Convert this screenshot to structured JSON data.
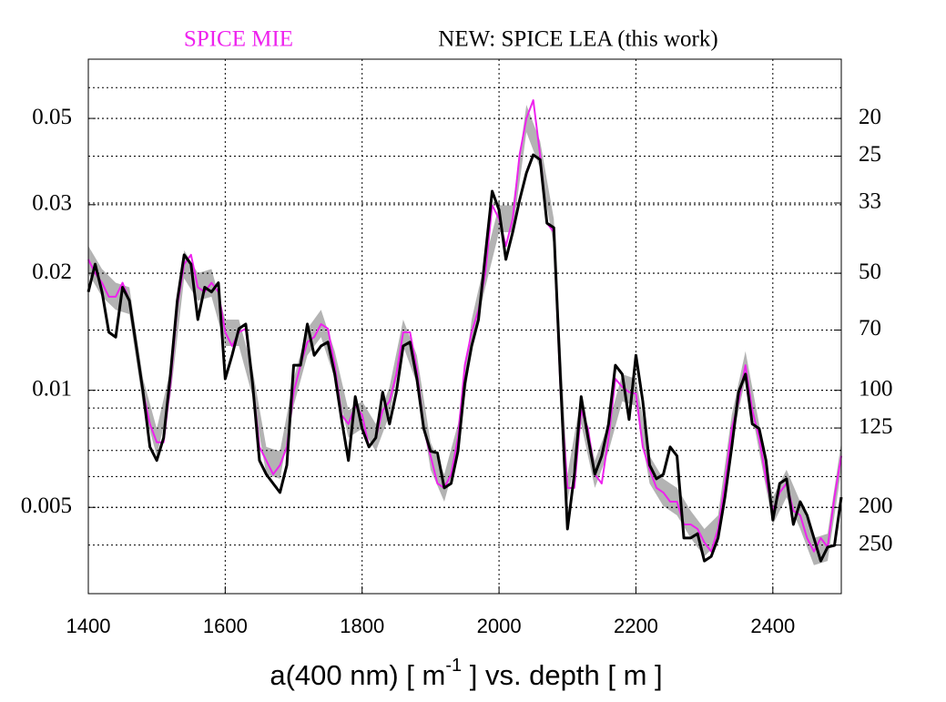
{
  "chart_data": {
    "type": "line",
    "xlabel": {
      "pre": "a(400 nm) [ m",
      "sup": "-1",
      "post": " ] vs. depth [ m ]"
    },
    "xlim": [
      1400,
      2500
    ],
    "xticks": [
      1400,
      1600,
      1800,
      2000,
      2200,
      2400
    ],
    "ylim": [
      0.003,
      0.071
    ],
    "yticks": [
      0.005,
      0.01,
      0.02,
      0.03,
      0.05
    ],
    "ylog": true,
    "y_minor_grid": [
      0.06,
      0.009,
      0.007,
      0.006
    ],
    "y2lim": [
      14.08,
      333.3
    ],
    "y2ticks": [
      20,
      25,
      33,
      50,
      70,
      100,
      125,
      200,
      250
    ],
    "y2log": true,
    "y2reversed": true,
    "grid": true,
    "x": [
      1400,
      1410,
      1420,
      1430,
      1440,
      1450,
      1460,
      1470,
      1480,
      1490,
      1500,
      1510,
      1520,
      1530,
      1540,
      1550,
      1560,
      1570,
      1580,
      1590,
      1600,
      1610,
      1620,
      1630,
      1640,
      1650,
      1660,
      1670,
      1680,
      1690,
      1700,
      1710,
      1720,
      1730,
      1740,
      1750,
      1760,
      1770,
      1780,
      1790,
      1800,
      1810,
      1820,
      1830,
      1840,
      1850,
      1860,
      1870,
      1880,
      1890,
      1900,
      1910,
      1920,
      1930,
      1940,
      1950,
      1960,
      1970,
      1980,
      1990,
      2000,
      2010,
      2020,
      2030,
      2040,
      2050,
      2060,
      2070,
      2080,
      2090,
      2100,
      2110,
      2120,
      2130,
      2140,
      2150,
      2160,
      2170,
      2180,
      2190,
      2200,
      2210,
      2220,
      2230,
      2240,
      2250,
      2260,
      2270,
      2280,
      2290,
      2300,
      2310,
      2320,
      2330,
      2340,
      2350,
      2360,
      2370,
      2380,
      2390,
      2400,
      2410,
      2420,
      2430,
      2440,
      2450,
      2460,
      2470,
      2480,
      2490,
      2500
    ],
    "band": {
      "color": "#b3b3b3",
      "x": [
        1400,
        1420,
        1440,
        1460,
        1480,
        1500,
        1520,
        1540,
        1560,
        1580,
        1600,
        1620,
        1640,
        1660,
        1680,
        1700,
        1720,
        1740,
        1760,
        1780,
        1800,
        1820,
        1840,
        1860,
        1880,
        1900,
        1920,
        1940,
        1960,
        1980,
        2000,
        2020,
        2040,
        2060,
        2080,
        2100,
        2120,
        2140,
        2160,
        2180,
        2200,
        2220,
        2240,
        2260,
        2280,
        2300,
        2320,
        2340,
        2360,
        2380,
        2400,
        2420,
        2440,
        2460,
        2480,
        2500
      ],
      "upper": [
        0.0235,
        0.0205,
        0.0189,
        0.0184,
        0.0107,
        0.00797,
        0.0113,
        0.0229,
        0.02,
        0.0205,
        0.0152,
        0.0152,
        0.0113,
        0.00715,
        0.00697,
        0.0107,
        0.0144,
        0.0161,
        0.0126,
        0.00888,
        0.00937,
        0.00819,
        0.0102,
        0.0152,
        0.0123,
        0.00735,
        0.00608,
        0.00819,
        0.0152,
        0.0217,
        0.0299,
        0.0299,
        0.0542,
        0.0437,
        0.0276,
        0.00608,
        0.00963,
        0.0066,
        0.00819,
        0.011,
        0.0107,
        0.00678,
        0.00592,
        0.00561,
        0.0049,
        0.0044,
        0.00477,
        0.00864,
        0.0126,
        0.00819,
        0.00531,
        0.00625,
        0.00517,
        0.00417,
        0.00428,
        0.00735
      ],
      "lower": [
        0.02,
        0.0174,
        0.0161,
        0.0157,
        0.00912,
        0.00678,
        0.00963,
        0.0194,
        0.017,
        0.0174,
        0.013,
        0.013,
        0.00963,
        0.00608,
        0.00592,
        0.00912,
        0.0123,
        0.0137,
        0.0107,
        0.00755,
        0.00797,
        0.00697,
        0.00864,
        0.013,
        0.0104,
        0.00625,
        0.00517,
        0.00697,
        0.013,
        0.0184,
        0.0255,
        0.0255,
        0.0461,
        0.0372,
        0.0235,
        0.00517,
        0.00819,
        0.00561,
        0.00697,
        0.00937,
        0.00912,
        0.00576,
        0.00504,
        0.00477,
        0.00417,
        0.00374,
        0.00406,
        0.00735,
        0.0107,
        0.00697,
        0.00452,
        0.00531,
        0.0044,
        0.00355,
        0.00364,
        0.00625
      ]
    },
    "series": [
      {
        "name": "SPICE MIE",
        "color": "#ee22ee",
        "values": [
          0.0217,
          0.02,
          0.0189,
          0.0174,
          0.0174,
          0.0189,
          0.017,
          0.013,
          0.00989,
          0.00819,
          0.00735,
          0.00735,
          0.0104,
          0.0165,
          0.0211,
          0.0223,
          0.0184,
          0.0179,
          0.0189,
          0.0179,
          0.0141,
          0.013,
          0.0141,
          0.0144,
          0.0104,
          0.00715,
          0.0066,
          0.00608,
          0.00642,
          0.00715,
          0.00989,
          0.0116,
          0.0133,
          0.0137,
          0.0148,
          0.0144,
          0.0116,
          0.00864,
          0.00819,
          0.00912,
          0.00864,
          0.00715,
          0.00755,
          0.00888,
          0.00937,
          0.011,
          0.0141,
          0.0141,
          0.0113,
          0.00797,
          0.00678,
          0.00576,
          0.00561,
          0.00608,
          0.00755,
          0.0116,
          0.0141,
          0.0161,
          0.02,
          0.0299,
          0.0276,
          0.0235,
          0.0276,
          0.0403,
          0.05,
          0.0557,
          0.0403,
          0.0269,
          0.0255,
          0.00989,
          0.00561,
          0.00561,
          0.00888,
          0.00797,
          0.00608,
          0.00576,
          0.00755,
          0.0107,
          0.0102,
          0.00989,
          0.0098,
          0.00715,
          0.00625,
          0.00561,
          0.00546,
          0.00517,
          0.00517,
          0.00452,
          0.00452,
          0.0044,
          0.00406,
          0.00385,
          0.0044,
          0.00576,
          0.00797,
          0.00937,
          0.0116,
          0.00888,
          0.00755,
          0.00592,
          0.0049,
          0.00546,
          0.00576,
          0.0049,
          0.00477,
          0.00417,
          0.00385,
          0.00417,
          0.00395,
          0.00531,
          0.00678
        ]
      },
      {
        "name": "NEW: SPICE LEA (this work)",
        "color": "#000000",
        "values": [
          0.0179,
          0.0211,
          0.0179,
          0.0141,
          0.0137,
          0.0184,
          0.017,
          0.013,
          0.00989,
          0.00715,
          0.0066,
          0.00755,
          0.011,
          0.017,
          0.0223,
          0.0211,
          0.0152,
          0.0184,
          0.0179,
          0.0189,
          0.0107,
          0.0123,
          0.0144,
          0.0148,
          0.0104,
          0.0066,
          0.00608,
          0.00576,
          0.00546,
          0.00642,
          0.0116,
          0.0116,
          0.0148,
          0.0123,
          0.013,
          0.0133,
          0.011,
          0.00841,
          0.0066,
          0.00963,
          0.00797,
          0.00715,
          0.00755,
          0.00989,
          0.00819,
          0.00989,
          0.013,
          0.0133,
          0.0107,
          0.00797,
          0.00697,
          0.0069,
          0.00561,
          0.00576,
          0.00697,
          0.0104,
          0.013,
          0.0152,
          0.0223,
          0.0325,
          0.0291,
          0.0217,
          0.0255,
          0.0308,
          0.0362,
          0.0403,
          0.0392,
          0.0269,
          0.0262,
          0.0104,
          0.0044,
          0.00608,
          0.00963,
          0.00755,
          0.00608,
          0.00678,
          0.00819,
          0.0116,
          0.011,
          0.00841,
          0.0123,
          0.00937,
          0.00642,
          0.00592,
          0.00608,
          0.00715,
          0.00678,
          0.00417,
          0.00417,
          0.00428,
          0.00364,
          0.00374,
          0.00417,
          0.00531,
          0.00715,
          0.00989,
          0.011,
          0.00819,
          0.00797,
          0.0066,
          0.00464,
          0.00576,
          0.00592,
          0.00452,
          0.00517,
          0.00477,
          0.00417,
          0.00364,
          0.00395,
          0.00399,
          0.00531
        ]
      }
    ]
  }
}
